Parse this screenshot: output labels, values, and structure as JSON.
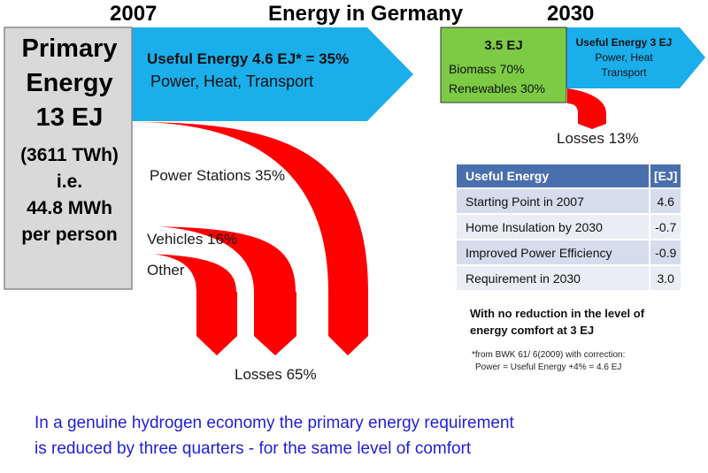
{
  "header": {
    "year_left": "2007",
    "title": "Energy in Germany",
    "year_right": "2030"
  },
  "primary": {
    "line1": "Primary",
    "line2": "Energy",
    "line3": "13 EJ",
    "line4": "(3611 TWh)",
    "line5": "i.e.",
    "line6": "44.8 MWh",
    "line7": "per person"
  },
  "useful_2007": {
    "title": "Useful Energy 4.6 EJ* = 35%",
    "subtitle": "Power, Heat, Transport"
  },
  "losses_2007": {
    "power_stations": "Power Stations 35%",
    "vehicles": "Vehicles 16%",
    "other": "Other",
    "losses": "Losses 65%"
  },
  "box_2030": {
    "amount": "3.5 EJ",
    "biomass": "Biomass 70%",
    "renewables": "Renewables 30%"
  },
  "useful_2030": {
    "line1": "Useful Energy 3 EJ",
    "line2": "Power, Heat",
    "line3": "Transport"
  },
  "losses_2030": "Losses 13%",
  "table": {
    "header": [
      "Useful Energy",
      "[EJ]"
    ],
    "rows": [
      [
        "Starting Point in 2007",
        "4.6"
      ],
      [
        "Home Insulation by 2030",
        "-0.7"
      ],
      [
        "Improved Power Efficiency",
        "-0.9"
      ],
      [
        "Requirement in 2030",
        "3.0"
      ]
    ]
  },
  "note": {
    "line1": "With no reduction in the level of",
    "line2": "energy comfort at 3 EJ"
  },
  "source": {
    "line1": "*from BWK 61/ 6(2009) with correction:",
    "line2": "Power = Useful Energy +4% = 4.6 EJ"
  },
  "footer": {
    "line1": "In a genuine hydrogen economy the primary energy requirement",
    "line2": "is reduced by three quarters - for the same level of comfort"
  },
  "colors": {
    "useful": "#1aaeea",
    "losses": "#ff0000",
    "renewables": "#7dcb45",
    "primary": "#d9d9d9",
    "table_header": "#4a6fad",
    "footer_text": "#1f1fd6"
  }
}
